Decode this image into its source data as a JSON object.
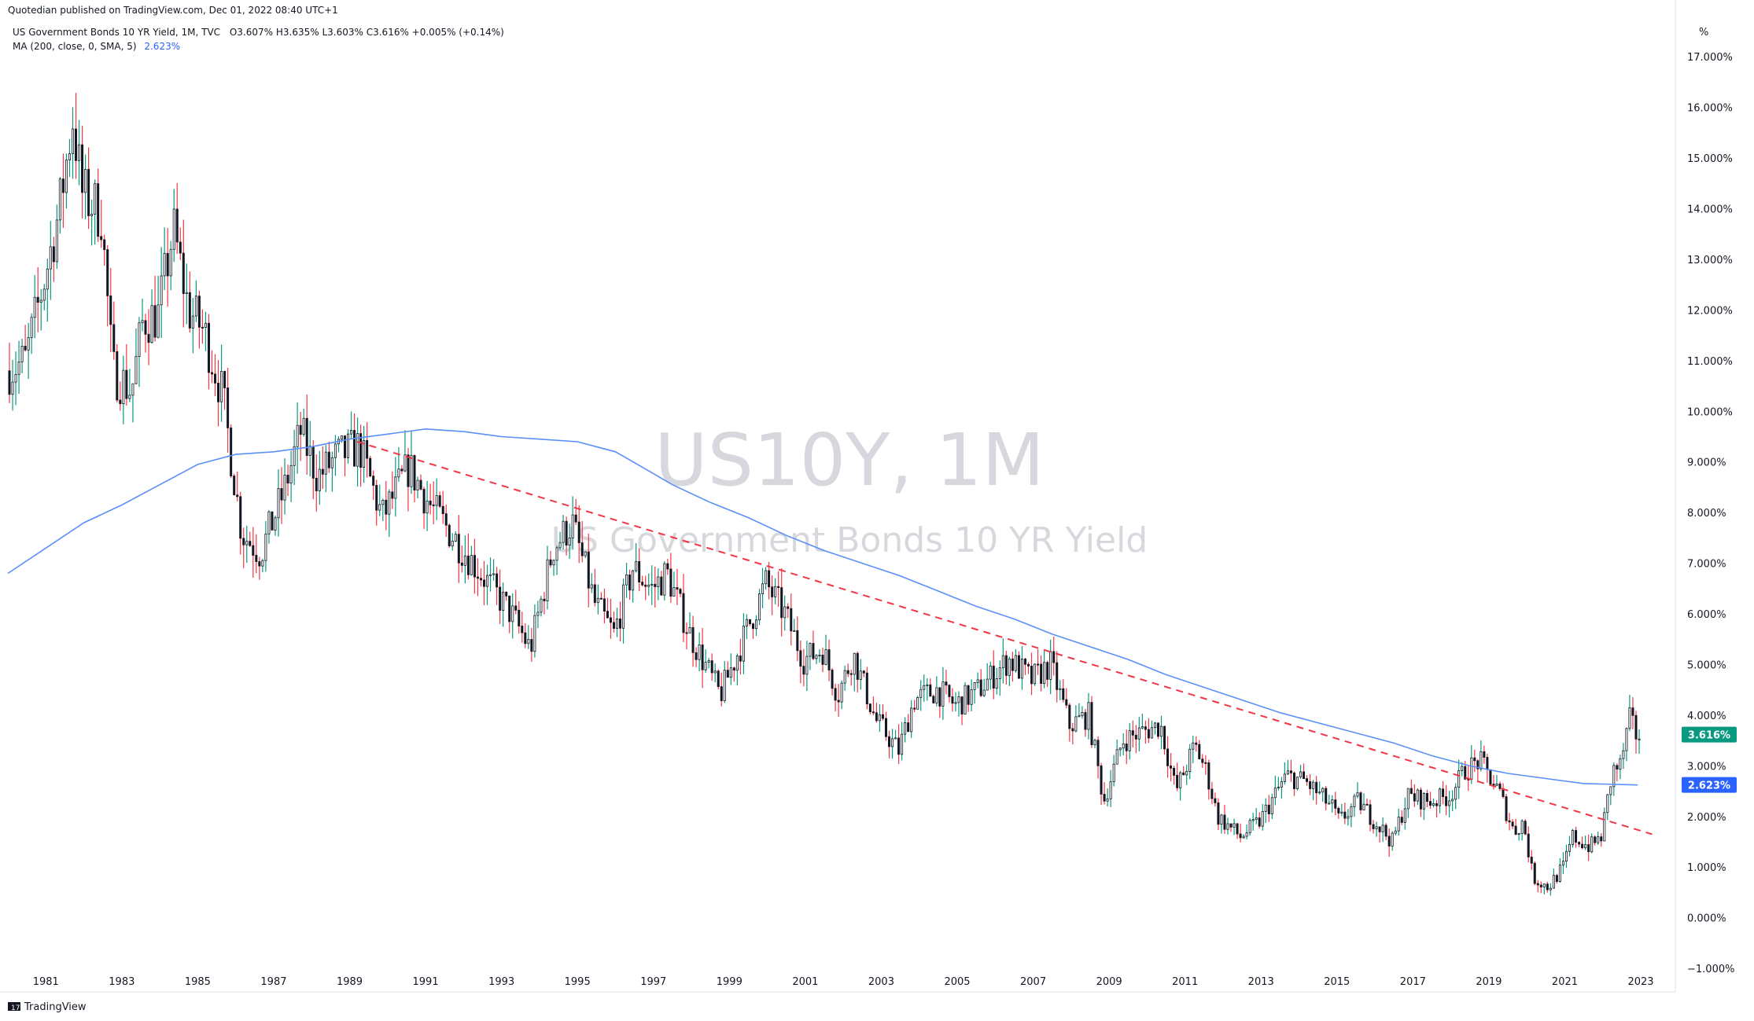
{
  "header": {
    "published": "Quotedian published on TradingView.com, Dec 01, 2022 08:40 UTC+1",
    "symbol_line_prefix": "US Government Bonds 10 YR Yield, 1M, TVC",
    "ohlc": "O3.607%  H3.635%  L3.603%  C3.616%  +0.005% (+0.14%)",
    "ma_label": "MA (200, close, 0, SMA, 5)",
    "ma_value": "2.623%"
  },
  "watermark": {
    "symbol": "US10Y, 1M",
    "description": "US Government Bonds 10 YR Yield"
  },
  "footer": {
    "brand": "TradingView",
    "brand_icon": "tradingview-logo-icon"
  },
  "price_badges": {
    "last": {
      "text": "3.616%",
      "value": 3.616,
      "color": "#089981"
    },
    "ma": {
      "text": "2.623%",
      "value": 2.623,
      "color": "#2962ff"
    }
  },
  "colors": {
    "up": "#089981",
    "down": "#f23645",
    "ma": "#5b8ff9",
    "trend": "#f23645",
    "candle_body": "#131722"
  },
  "chart_data": {
    "type": "candlestick",
    "title": "US Government Bonds 10 YR Yield",
    "interval": "1M",
    "y_unit": "%",
    "ylim": [
      -1.2,
      17.5
    ],
    "y_ticks": [
      17,
      16,
      15,
      14,
      13,
      12,
      11,
      10,
      9,
      8,
      7,
      6,
      5,
      4,
      3,
      2,
      1,
      0,
      -1
    ],
    "y_tick_labels": [
      "17.000%",
      "16.000%",
      "15.000%",
      "14.000%",
      "13.000%",
      "12.000%",
      "11.000%",
      "10.000%",
      "9.000%",
      "8.000%",
      "7.000%",
      "6.000%",
      "5.000%",
      "4.000%",
      "3.000%",
      "2.000%",
      "1.000%",
      "0.000%",
      "−1.000%"
    ],
    "xlim": [
      1980.0,
      2023.6
    ],
    "x_ticks": [
      1981,
      1983,
      1985,
      1987,
      1989,
      1991,
      1993,
      1995,
      1997,
      1999,
      2001,
      2003,
      2005,
      2007,
      2009,
      2011,
      2013,
      2015,
      2017,
      2019,
      2021,
      2023
    ],
    "x_tick_labels": [
      "1981",
      "1983",
      "1985",
      "1987",
      "1989",
      "1991",
      "1993",
      "1995",
      "1997",
      "1999",
      "2001",
      "2003",
      "2005",
      "2007",
      "2009",
      "2011",
      "2013",
      "2015",
      "2017",
      "2019",
      "2021",
      "2023"
    ],
    "price_anchors": [
      [
        1980.0,
        10.8
      ],
      [
        1980.5,
        11.0
      ],
      [
        1981.0,
        12.6
      ],
      [
        1981.4,
        14.0
      ],
      [
        1981.75,
        15.8
      ],
      [
        1982.0,
        14.3
      ],
      [
        1982.5,
        13.9
      ],
      [
        1982.8,
        10.8
      ],
      [
        1983.3,
        10.4
      ],
      [
        1983.6,
        11.8
      ],
      [
        1984.0,
        11.9
      ],
      [
        1984.4,
        13.6
      ],
      [
        1984.8,
        12.0
      ],
      [
        1985.2,
        11.6
      ],
      [
        1985.7,
        10.3
      ],
      [
        1986.2,
        7.6
      ],
      [
        1986.7,
        7.2
      ],
      [
        1987.3,
        8.4
      ],
      [
        1987.75,
        9.6
      ],
      [
        1988.2,
        8.7
      ],
      [
        1988.7,
        9.1
      ],
      [
        1989.3,
        9.3
      ],
      [
        1989.9,
        7.9
      ],
      [
        1990.6,
        8.9
      ],
      [
        1991.2,
        8.1
      ],
      [
        1991.9,
        7.4
      ],
      [
        1992.6,
        6.7
      ],
      [
        1993.3,
        6.0
      ],
      [
        1993.8,
        5.3
      ],
      [
        1994.4,
        7.3
      ],
      [
        1994.9,
        7.8
      ],
      [
        1995.5,
        6.2
      ],
      [
        1996.0,
        5.6
      ],
      [
        1996.5,
        6.9
      ],
      [
        1997.0,
        6.5
      ],
      [
        1997.4,
        6.8
      ],
      [
        1998.0,
        5.6
      ],
      [
        1998.8,
        4.4
      ],
      [
        1999.3,
        5.3
      ],
      [
        2000.0,
        6.6
      ],
      [
        2000.5,
        6.0
      ],
      [
        2001.0,
        5.1
      ],
      [
        2001.5,
        5.3
      ],
      [
        2001.9,
        4.4
      ],
      [
        2002.3,
        5.2
      ],
      [
        2002.9,
        3.9
      ],
      [
        2003.5,
        3.3
      ],
      [
        2003.9,
        4.3
      ],
      [
        2004.5,
        4.5
      ],
      [
        2005.0,
        4.2
      ],
      [
        2005.6,
        4.5
      ],
      [
        2006.4,
        5.1
      ],
      [
        2007.0,
        4.7
      ],
      [
        2007.5,
        5.0
      ],
      [
        2008.0,
        3.8
      ],
      [
        2008.5,
        4.0
      ],
      [
        2008.9,
        2.3
      ],
      [
        2009.4,
        3.5
      ],
      [
        2010.0,
        3.7
      ],
      [
        2010.4,
        3.8
      ],
      [
        2010.8,
        2.5
      ],
      [
        2011.3,
        3.4
      ],
      [
        2011.6,
        2.9
      ],
      [
        2011.9,
        2.0
      ],
      [
        2012.5,
        1.6
      ],
      [
        2013.0,
        1.9
      ],
      [
        2013.7,
        2.8
      ],
      [
        2014.2,
        2.7
      ],
      [
        2014.9,
        2.2
      ],
      [
        2015.1,
        1.9
      ],
      [
        2015.6,
        2.3
      ],
      [
        2016.5,
        1.5
      ],
      [
        2016.9,
        2.4
      ],
      [
        2017.5,
        2.3
      ],
      [
        2018.0,
        2.4
      ],
      [
        2018.4,
        2.9
      ],
      [
        2018.8,
        3.1
      ],
      [
        2019.3,
        2.5
      ],
      [
        2019.7,
        1.7
      ],
      [
        2019.95,
        1.9
      ],
      [
        2020.2,
        0.8
      ],
      [
        2020.6,
        0.6
      ],
      [
        2021.0,
        1.0
      ],
      [
        2021.25,
        1.6
      ],
      [
        2021.7,
        1.4
      ],
      [
        2022.0,
        1.6
      ],
      [
        2022.3,
        2.9
      ],
      [
        2022.5,
        3.0
      ],
      [
        2022.75,
        3.9
      ],
      [
        2022.92,
        3.62
      ]
    ],
    "series": [
      {
        "name": "MA (200, close, 0, SMA, 5)",
        "type": "line",
        "points": [
          [
            1980.0,
            6.8
          ],
          [
            1981.0,
            7.3
          ],
          [
            1982.0,
            7.8
          ],
          [
            1983.0,
            8.15
          ],
          [
            1984.0,
            8.55
          ],
          [
            1985.0,
            8.95
          ],
          [
            1986.0,
            9.15
          ],
          [
            1987.0,
            9.2
          ],
          [
            1988.0,
            9.3
          ],
          [
            1989.0,
            9.45
          ],
          [
            1990.0,
            9.55
          ],
          [
            1991.0,
            9.65
          ],
          [
            1992.0,
            9.6
          ],
          [
            1993.0,
            9.5
          ],
          [
            1994.0,
            9.45
          ],
          [
            1995.0,
            9.4
          ],
          [
            1996.0,
            9.2
          ],
          [
            1996.7,
            8.9
          ],
          [
            1997.5,
            8.55
          ],
          [
            1998.5,
            8.2
          ],
          [
            1999.5,
            7.9
          ],
          [
            2000.5,
            7.55
          ],
          [
            2001.5,
            7.25
          ],
          [
            2002.5,
            7.0
          ],
          [
            2003.5,
            6.75
          ],
          [
            2004.5,
            6.45
          ],
          [
            2005.5,
            6.15
          ],
          [
            2006.5,
            5.9
          ],
          [
            2007.5,
            5.6
          ],
          [
            2008.5,
            5.35
          ],
          [
            2009.5,
            5.1
          ],
          [
            2010.5,
            4.8
          ],
          [
            2011.5,
            4.55
          ],
          [
            2012.5,
            4.3
          ],
          [
            2013.5,
            4.05
          ],
          [
            2014.5,
            3.85
          ],
          [
            2015.5,
            3.65
          ],
          [
            2016.5,
            3.45
          ],
          [
            2017.5,
            3.2
          ],
          [
            2018.5,
            3.0
          ],
          [
            2019.5,
            2.85
          ],
          [
            2020.5,
            2.75
          ],
          [
            2021.5,
            2.65
          ],
          [
            2022.92,
            2.623
          ]
        ]
      },
      {
        "name": "",
        "type": "dashed-line",
        "points": [
          [
            1989.2,
            9.4
          ],
          [
            2023.3,
            1.65
          ]
        ]
      }
    ]
  }
}
